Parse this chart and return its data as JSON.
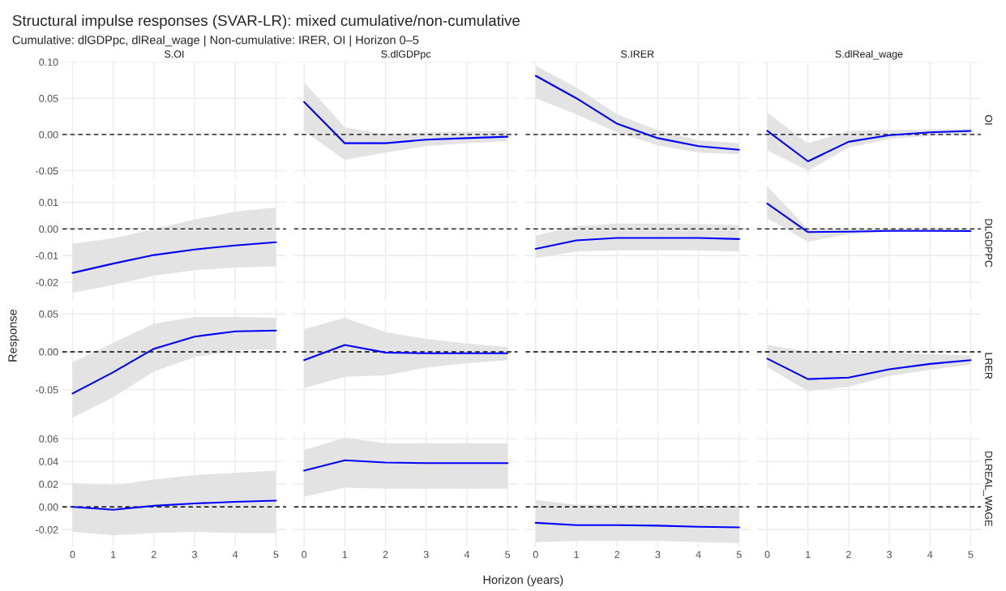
{
  "chart_data": [
    {
      "type": "line",
      "title": "S.OI",
      "annotations": [
        "Structural impulse responses (SVAR-LR): mixed cumulative/non-cumulative",
        "Cumulative: dlGDPpc, dlReal_wage | Non-cumulative: IRER, OI | Horizon 0–5"
      ],
      "xlim": [
        -0.25,
        5.25
      ],
      "xticks": [
        0,
        1,
        2,
        3,
        4,
        5
      ],
      "ylim": [
        -0.06,
        0.1
      ],
      "yticks": [
        {
          "value": -0.05,
          "label": "-0.05"
        },
        {
          "value": 0,
          "label": "0.00"
        },
        {
          "value": 0.05,
          "label": "0.05"
        },
        {
          "value": 0.1,
          "label": "0.10"
        }
      ],
      "tick_labels": "y",
      "grid": true,
      "ref_lines": [
        {
          "axis": "y",
          "value": 0,
          "color": "#000000",
          "line_style": "dashed"
        }
      ]
    },
    {
      "type": "line",
      "title": "S.dlGDPpc",
      "x": [
        0,
        1,
        2,
        3,
        4,
        5
      ],
      "xlim": [
        -0.25,
        5.25
      ],
      "xticks": [
        0,
        1,
        2,
        3,
        4,
        5
      ],
      "ylim": [
        -0.06,
        0.1
      ],
      "yticks": [
        -0.05,
        0,
        0.05,
        0.1
      ],
      "tick_labels": false,
      "grid": true,
      "ref_lines": [
        {
          "axis": "y",
          "value": 0,
          "color": "#000000",
          "line_style": "dashed"
        }
      ],
      "series": [
        {
          "color": "#0000ff",
          "values": [
            0.045,
            -0.012,
            -0.012,
            -0.007,
            -0.005,
            -0.003
          ],
          "lower": [
            0.005,
            -0.035,
            -0.025,
            -0.016,
            -0.012,
            -0.009
          ],
          "upper": [
            0.072,
            0.01,
            0.0,
            0.003,
            0.004,
            0.005
          ]
        }
      ]
    },
    {
      "type": "line",
      "title": "S.IRER",
      "x": [
        0,
        1,
        2,
        3,
        4,
        5
      ],
      "xlim": [
        -0.25,
        5.25
      ],
      "xticks": [
        0,
        1,
        2,
        3,
        4,
        5
      ],
      "ylim": [
        -0.06,
        0.1
      ],
      "yticks": [
        -0.05,
        0,
        0.05,
        0.1
      ],
      "tick_labels": false,
      "grid": true,
      "ref_lines": [
        {
          "axis": "y",
          "value": 0,
          "color": "#000000",
          "line_style": "dashed"
        }
      ],
      "series": [
        {
          "color": "#0000ff",
          "values": [
            0.081,
            0.05,
            0.015,
            -0.005,
            -0.016,
            -0.021
          ],
          "lower": [
            0.05,
            0.028,
            0.003,
            -0.015,
            -0.025,
            -0.027
          ],
          "upper": [
            0.095,
            0.065,
            0.028,
            0.006,
            -0.008,
            -0.012
          ]
        }
      ]
    },
    {
      "type": "line",
      "title": "S.dlReal_wage",
      "y2label": "OI",
      "x": [
        0,
        1,
        2,
        3,
        4,
        5
      ],
      "xlim": [
        -0.25,
        5.25
      ],
      "xticks": [
        0,
        1,
        2,
        3,
        4,
        5
      ],
      "ylim": [
        -0.06,
        0.1
      ],
      "yticks": [
        -0.05,
        0,
        0.05,
        0.1
      ],
      "tick_labels": false,
      "grid": true,
      "ref_lines": [
        {
          "axis": "y",
          "value": 0,
          "color": "#000000",
          "line_style": "dashed"
        }
      ],
      "series": [
        {
          "color": "#0000ff",
          "values": [
            0.005,
            -0.037,
            -0.01,
            -0.001,
            0.003,
            0.005
          ],
          "lower": [
            -0.022,
            -0.05,
            -0.018,
            -0.006,
            -0.002,
            0.001
          ],
          "upper": [
            0.03,
            -0.012,
            0.005,
            0.006,
            0.007,
            0.008
          ]
        }
      ]
    },
    {
      "type": "line",
      "x": [
        0,
        1,
        2,
        3,
        4,
        5
      ],
      "xlim": [
        -0.25,
        5.25
      ],
      "xticks": [
        0,
        1,
        2,
        3,
        4,
        5
      ],
      "ylim": [
        -0.027,
        0.0165
      ],
      "yticks": [
        {
          "value": -0.02,
          "label": "-0.02"
        },
        {
          "value": -0.01,
          "label": "-0.01"
        },
        {
          "value": 0,
          "label": "0.00"
        },
        {
          "value": 0.01,
          "label": "0.01"
        }
      ],
      "tick_labels": "y",
      "grid": true,
      "ref_lines": [
        {
          "axis": "y",
          "value": 0,
          "color": "#000000",
          "line_style": "dashed"
        }
      ],
      "series": [
        {
          "color": "#0000ff",
          "values": [
            -0.0165,
            -0.013,
            -0.0098,
            -0.0077,
            -0.0062,
            -0.005
          ],
          "lower": [
            -0.024,
            -0.021,
            -0.0175,
            -0.0155,
            -0.0145,
            -0.014
          ],
          "upper": [
            -0.0055,
            -0.0035,
            0.0,
            0.0035,
            0.0065,
            0.008
          ]
        }
      ]
    },
    {
      "type": "line",
      "xlim": [
        -0.25,
        5.25
      ],
      "xticks": [
        0,
        1,
        2,
        3,
        4,
        5
      ],
      "ylim": [
        -0.027,
        0.0165
      ],
      "yticks": [
        -0.02,
        -0.01,
        0,
        0.01
      ],
      "tick_labels": false,
      "grid": true,
      "ref_lines": [
        {
          "axis": "y",
          "value": 0,
          "color": "#000000",
          "line_style": "dashed"
        }
      ]
    },
    {
      "type": "line",
      "x": [
        0,
        1,
        2,
        3,
        4,
        5
      ],
      "xlim": [
        -0.25,
        5.25
      ],
      "xticks": [
        0,
        1,
        2,
        3,
        4,
        5
      ],
      "ylim": [
        -0.027,
        0.0165
      ],
      "yticks": [
        -0.02,
        -0.01,
        0,
        0.01
      ],
      "tick_labels": false,
      "grid": true,
      "ref_lines": [
        {
          "axis": "y",
          "value": 0,
          "color": "#000000",
          "line_style": "dashed"
        }
      ],
      "series": [
        {
          "color": "#0000ff",
          "values": [
            -0.0075,
            -0.0043,
            -0.0034,
            -0.0034,
            -0.0034,
            -0.0038
          ],
          "lower": [
            -0.011,
            -0.0085,
            -0.008,
            -0.008,
            -0.008,
            -0.0085
          ],
          "upper": [
            -0.0025,
            0.001,
            0.002,
            0.002,
            0.0018,
            0.0015
          ]
        }
      ]
    },
    {
      "type": "line",
      "y2label": "DLGDPPC",
      "x": [
        0,
        1,
        2,
        3,
        4,
        5
      ],
      "xlim": [
        -0.25,
        5.25
      ],
      "xticks": [
        0,
        1,
        2,
        3,
        4,
        5
      ],
      "ylim": [
        -0.027,
        0.0165
      ],
      "yticks": [
        -0.02,
        -0.01,
        0,
        0.01
      ],
      "tick_labels": false,
      "grid": true,
      "ref_lines": [
        {
          "axis": "y",
          "value": 0,
          "color": "#000000",
          "line_style": "dashed"
        }
      ],
      "series": [
        {
          "color": "#0000ff",
          "values": [
            0.0095,
            -0.0012,
            -0.001,
            -0.0007,
            -0.0007,
            -0.0008
          ],
          "lower": [
            0.004,
            -0.0048,
            -0.002,
            -0.001,
            -0.001,
            -0.001
          ],
          "upper": [
            0.016,
            0.0,
            0.0,
            0.0,
            0.0,
            0.0
          ]
        }
      ]
    },
    {
      "type": "line",
      "ylabel": "Response",
      "x": [
        0,
        1,
        2,
        3,
        4,
        5
      ],
      "xlim": [
        -0.25,
        5.25
      ],
      "xticks": [
        0,
        1,
        2,
        3,
        4,
        5
      ],
      "ylim": [
        -0.095,
        0.058
      ],
      "yticks": [
        {
          "value": -0.05,
          "label": "-0.05"
        },
        {
          "value": 0,
          "label": "0.00"
        },
        {
          "value": 0.05,
          "label": "0.05"
        }
      ],
      "tick_labels": "y",
      "grid": true,
      "ref_lines": [
        {
          "axis": "y",
          "value": 0,
          "color": "#000000",
          "line_style": "dashed"
        }
      ],
      "series": [
        {
          "color": "#0000ff",
          "values": [
            -0.055,
            -0.027,
            0.004,
            0.02,
            0.027,
            0.028
          ],
          "lower": [
            -0.087,
            -0.06,
            -0.026,
            -0.007,
            0.002,
            0.003
          ],
          "upper": [
            -0.014,
            0.012,
            0.037,
            0.046,
            0.046,
            0.045
          ]
        }
      ]
    },
    {
      "type": "line",
      "x": [
        0,
        1,
        2,
        3,
        4,
        5
      ],
      "xlim": [
        -0.25,
        5.25
      ],
      "xticks": [
        0,
        1,
        2,
        3,
        4,
        5
      ],
      "ylim": [
        -0.095,
        0.058
      ],
      "yticks": [
        -0.05,
        0,
        0.05
      ],
      "tick_labels": false,
      "grid": true,
      "ref_lines": [
        {
          "axis": "y",
          "value": 0,
          "color": "#000000",
          "line_style": "dashed"
        }
      ],
      "series": [
        {
          "color": "#0000ff",
          "values": [
            -0.011,
            0.009,
            -0.001,
            -0.002,
            -0.002,
            -0.002
          ],
          "lower": [
            -0.048,
            -0.033,
            -0.031,
            -0.021,
            -0.015,
            -0.011
          ],
          "upper": [
            0.03,
            0.045,
            0.026,
            0.017,
            0.011,
            0.006
          ]
        }
      ]
    },
    {
      "type": "line",
      "xlim": [
        -0.25,
        5.25
      ],
      "xticks": [
        0,
        1,
        2,
        3,
        4,
        5
      ],
      "ylim": [
        -0.095,
        0.058
      ],
      "yticks": [
        -0.05,
        0,
        0.05
      ],
      "tick_labels": false,
      "grid": true,
      "ref_lines": [
        {
          "axis": "y",
          "value": 0,
          "color": "#000000",
          "line_style": "dashed"
        }
      ]
    },
    {
      "type": "line",
      "y2label": "LRER",
      "x": [
        0,
        1,
        2,
        3,
        4,
        5
      ],
      "xlim": [
        -0.25,
        5.25
      ],
      "xticks": [
        0,
        1,
        2,
        3,
        4,
        5
      ],
      "ylim": [
        -0.095,
        0.058
      ],
      "yticks": [
        -0.05,
        0,
        0.05
      ],
      "tick_labels": false,
      "grid": true,
      "ref_lines": [
        {
          "axis": "y",
          "value": 0,
          "color": "#000000",
          "line_style": "dashed"
        }
      ],
      "series": [
        {
          "color": "#0000ff",
          "values": [
            -0.009,
            -0.036,
            -0.034,
            -0.023,
            -0.016,
            -0.011
          ],
          "lower": [
            -0.02,
            -0.052,
            -0.046,
            -0.032,
            -0.024,
            -0.017
          ],
          "upper": [
            0.009,
            0.0,
            -0.002,
            -0.001,
            -0.003,
            -0.005
          ]
        }
      ]
    },
    {
      "type": "line",
      "x": [
        0,
        1,
        2,
        3,
        4,
        5
      ],
      "xlim": [
        -0.25,
        5.25
      ],
      "xticks": [
        0,
        1,
        2,
        3,
        4,
        5
      ],
      "ylim": [
        -0.035,
        0.067
      ],
      "yticks": [
        {
          "value": -0.02,
          "label": "-0.02"
        },
        {
          "value": 0,
          "label": "0.00"
        },
        {
          "value": 0.02,
          "label": "0.02"
        },
        {
          "value": 0.04,
          "label": "0.04"
        },
        {
          "value": 0.06,
          "label": "0.06"
        }
      ],
      "grid": true,
      "ref_lines": [
        {
          "axis": "y",
          "value": 0,
          "color": "#000000",
          "line_style": "dashed"
        }
      ],
      "series": [
        {
          "color": "#0000ff",
          "values": [
            0.0,
            -0.0025,
            0.001,
            0.003,
            0.0045,
            0.0055
          ],
          "lower": [
            -0.022,
            -0.025,
            -0.023,
            -0.022,
            -0.023,
            -0.023
          ],
          "upper": [
            0.021,
            0.019,
            0.024,
            0.028,
            0.03,
            0.032
          ]
        }
      ]
    },
    {
      "type": "line",
      "xlabel": "Horizon (years)",
      "x": [
        0,
        1,
        2,
        3,
        4,
        5
      ],
      "xlim": [
        -0.25,
        5.25
      ],
      "xticks": [
        0,
        1,
        2,
        3,
        4,
        5
      ],
      "ylim": [
        -0.035,
        0.067
      ],
      "yticks": [
        -0.02,
        0,
        0.02,
        0.04,
        0.06
      ],
      "tick_labels": "x",
      "grid": true,
      "ref_lines": [
        {
          "axis": "y",
          "value": 0,
          "color": "#000000",
          "line_style": "dashed"
        }
      ],
      "series": [
        {
          "color": "#0000ff",
          "values": [
            0.032,
            0.041,
            0.039,
            0.0385,
            0.0385,
            0.0385
          ],
          "lower": [
            0.009,
            0.017,
            0.016,
            0.016,
            0.016,
            0.016
          ],
          "upper": [
            0.05,
            0.061,
            0.056,
            0.056,
            0.056,
            0.056
          ]
        }
      ]
    },
    {
      "type": "line",
      "x": [
        0,
        1,
        2,
        3,
        4,
        5
      ],
      "xlim": [
        -0.25,
        5.25
      ],
      "xticks": [
        0,
        1,
        2,
        3,
        4,
        5
      ],
      "ylim": [
        -0.035,
        0.067
      ],
      "yticks": [
        -0.02,
        0,
        0.02,
        0.04,
        0.06
      ],
      "tick_labels": "x",
      "grid": true,
      "ref_lines": [
        {
          "axis": "y",
          "value": 0,
          "color": "#000000",
          "line_style": "dashed"
        }
      ],
      "series": [
        {
          "color": "#0000ff",
          "values": [
            -0.014,
            -0.016,
            -0.016,
            -0.0165,
            -0.0175,
            -0.018
          ],
          "lower": [
            -0.031,
            -0.03,
            -0.03,
            -0.03,
            -0.031,
            -0.032
          ],
          "upper": [
            0.006,
            0.002,
            0.002,
            0.001,
            0.001,
            0.001
          ]
        }
      ]
    },
    {
      "type": "line",
      "y2label": "DLREAL_WAGE",
      "xlim": [
        -0.25,
        5.25
      ],
      "xticks": [
        0,
        1,
        2,
        3,
        4,
        5
      ],
      "ylim": [
        -0.035,
        0.067
      ],
      "yticks": [
        -0.02,
        0,
        0.02,
        0.04,
        0.06
      ],
      "tick_labels": "x",
      "grid": true,
      "ref_lines": [
        {
          "axis": "y",
          "value": 0,
          "color": "#000000",
          "line_style": "dashed"
        }
      ]
    }
  ]
}
